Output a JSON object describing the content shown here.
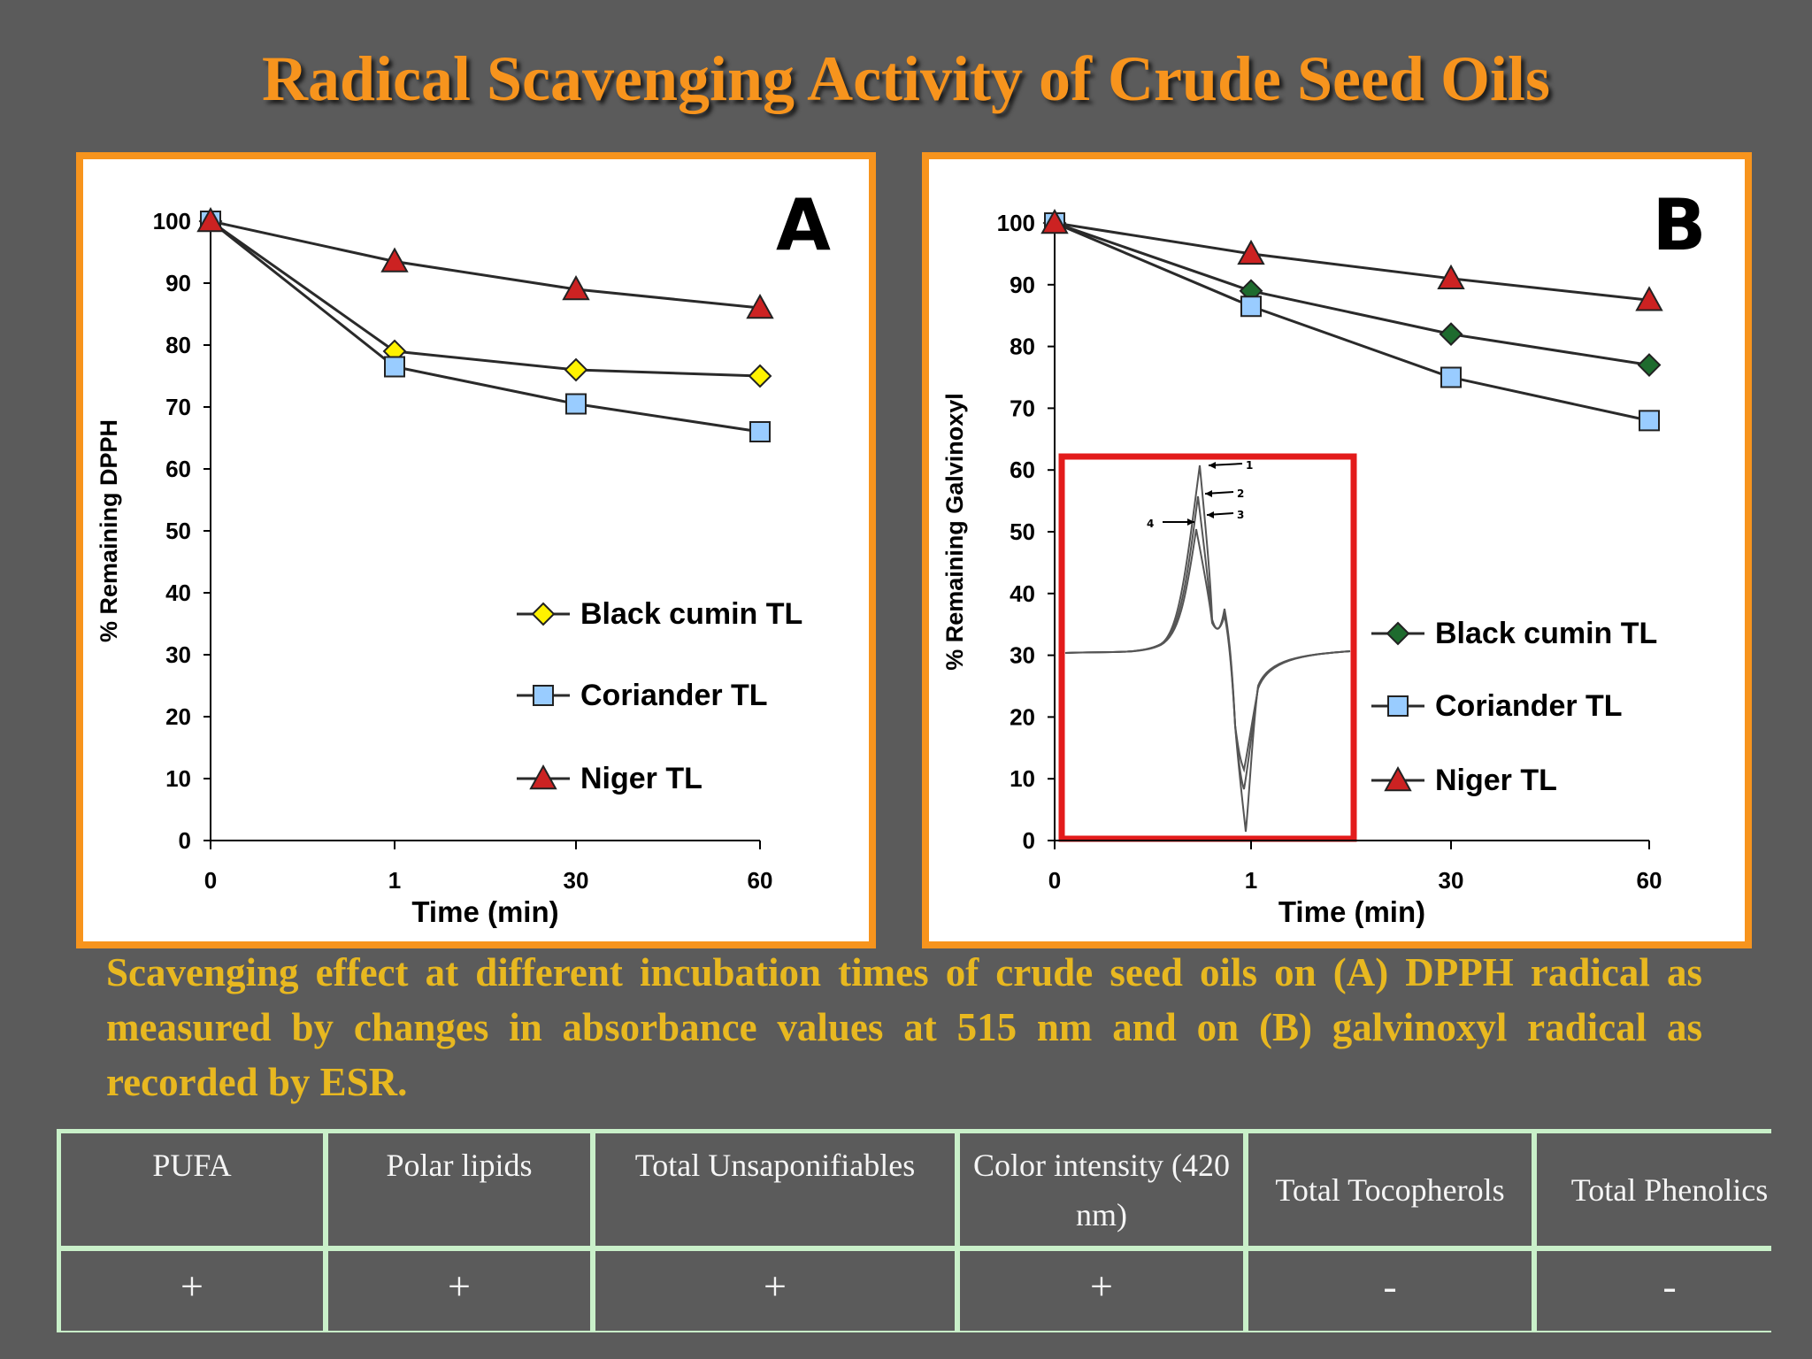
{
  "slide_title": "Radical Scavenging Activity of Crude Seed Oils",
  "caption": "Scavenging effect at different incubation times of crude seed oils on (A) DPPH radical as measured by changes in absorbance values at 515 nm and on (B) galvinoxyl radical as recorded by ESR.",
  "table": {
    "headers": [
      "PUFA",
      "Polar lipids",
      "Total Unsaponifiables",
      "Color intensity (420 nm)",
      "Total Tocopherols",
      "Total Phenolics"
    ],
    "values": [
      "+",
      "+",
      "+",
      "+",
      "-",
      "-"
    ]
  },
  "colors": {
    "background": "#5b5b5b",
    "title": "#f7941d",
    "panel_border": "#f7941d",
    "caption": "#e8b820",
    "table_border": "#c9f0c9",
    "inset_border": "#e31b1b",
    "black_cumin_A": "#fff200",
    "black_cumin_B": "#1e6b2e",
    "coriander": "#99ccff",
    "niger": "#cc2222"
  },
  "chart_data": [
    {
      "type": "line",
      "panel_label": "A",
      "xlabel": "Time (min)",
      "ylabel": "% Remaining DPPH",
      "categories": [
        "0",
        "1",
        "30",
        "60"
      ],
      "ylim": [
        0,
        100
      ],
      "yticks": [
        0,
        10,
        20,
        30,
        40,
        50,
        60,
        70,
        80,
        90,
        100
      ],
      "legend_position": "right-center",
      "series": [
        {
          "name": "Black cumin TL",
          "marker": "diamond",
          "values": [
            100,
            79,
            76,
            75
          ]
        },
        {
          "name": "Coriander TL",
          "marker": "square",
          "values": [
            100,
            76.5,
            70.5,
            66
          ]
        },
        {
          "name": "Niger TL",
          "marker": "triangle",
          "values": [
            100,
            93.5,
            89,
            86
          ]
        }
      ]
    },
    {
      "type": "line",
      "panel_label": "B",
      "xlabel": "Time (min)",
      "ylabel": "% Remaining Galvinoxyl",
      "categories": [
        "0",
        "1",
        "30",
        "60"
      ],
      "ylim": [
        0,
        100
      ],
      "yticks": [
        0,
        10,
        20,
        30,
        40,
        50,
        60,
        70,
        80,
        90,
        100
      ],
      "legend_position": "right-center",
      "series": [
        {
          "name": "Black cumin TL",
          "marker": "diamond",
          "values": [
            100,
            89,
            82,
            77
          ]
        },
        {
          "name": "Coriander TL",
          "marker": "square",
          "values": [
            100,
            86.5,
            75,
            68
          ]
        },
        {
          "name": "Niger TL",
          "marker": "triangle",
          "values": [
            100,
            95,
            91,
            87.5
          ]
        }
      ],
      "inset_esr_peak_labels": [
        "1",
        "2",
        "3",
        "4"
      ]
    }
  ]
}
